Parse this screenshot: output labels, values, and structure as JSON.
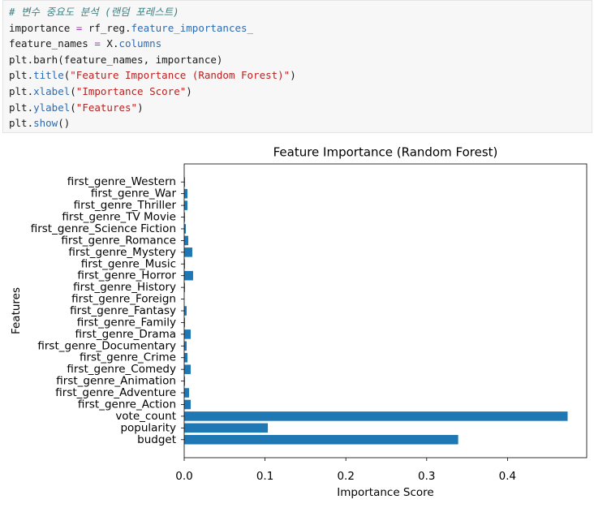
{
  "code": {
    "lines": [
      [
        {
          "text": "# 변수 중요도 분석 (랜덤 포레스트)",
          "color": "#3d7f7f"
        }
      ],
      [
        {
          "text": "importance ",
          "color": "#1a1a1a"
        },
        {
          "text": "=",
          "color": "#9a3fb5"
        },
        {
          "text": " rf_reg.",
          "color": "#1a1a1a"
        },
        {
          "text": "feature_importances_",
          "color": "#2f6bb0"
        }
      ],
      [
        {
          "text": "feature_names ",
          "color": "#1a1a1a"
        },
        {
          "text": "=",
          "color": "#9a3fb5"
        },
        {
          "text": " X.",
          "color": "#1a1a1a"
        },
        {
          "text": "columns",
          "color": "#2f6bb0"
        }
      ],
      [
        {
          "text": "plt.barh(feature_names, importance)",
          "color": "#1a1a1a"
        }
      ],
      [
        {
          "text": "plt.",
          "color": "#1a1a1a"
        },
        {
          "text": "title",
          "color": "#2f6bb0"
        },
        {
          "text": "(",
          "color": "#1a1a1a"
        },
        {
          "text": "\"Feature Importance (Random Forest)\"",
          "color": "#ba2121"
        },
        {
          "text": ")",
          "color": "#1a1a1a"
        }
      ],
      [
        {
          "text": "plt.",
          "color": "#1a1a1a"
        },
        {
          "text": "xlabel",
          "color": "#2f6bb0"
        },
        {
          "text": "(",
          "color": "#1a1a1a"
        },
        {
          "text": "\"Importance Score\"",
          "color": "#ba2121"
        },
        {
          "text": ")",
          "color": "#1a1a1a"
        }
      ],
      [
        {
          "text": "plt.",
          "color": "#1a1a1a"
        },
        {
          "text": "ylabel",
          "color": "#2f6bb0"
        },
        {
          "text": "(",
          "color": "#1a1a1a"
        },
        {
          "text": "\"Features\"",
          "color": "#ba2121"
        },
        {
          "text": ")",
          "color": "#1a1a1a"
        }
      ],
      [
        {
          "text": "plt.",
          "color": "#1a1a1a"
        },
        {
          "text": "show",
          "color": "#2f6bb0"
        },
        {
          "text": "()",
          "color": "#1a1a1a"
        }
      ]
    ]
  },
  "chart_data": {
    "type": "barh",
    "title": "Feature Importance (Random Forest)",
    "x_label": "Importance Score",
    "y_label": "Features",
    "categories": [
      "budget",
      "popularity",
      "vote_count",
      "first_genre_Action",
      "first_genre_Adventure",
      "first_genre_Animation",
      "first_genre_Comedy",
      "first_genre_Crime",
      "first_genre_Documentary",
      "first_genre_Drama",
      "first_genre_Family",
      "first_genre_Fantasy",
      "first_genre_Foreign",
      "first_genre_History",
      "first_genre_Horror",
      "first_genre_Music",
      "first_genre_Mystery",
      "first_genre_Romance",
      "first_genre_Science Fiction",
      "first_genre_TV Movie",
      "first_genre_Thriller",
      "first_genre_War",
      "first_genre_Western"
    ],
    "values": [
      0.339,
      0.1035,
      0.4744,
      0.008,
      0.006,
      0.001,
      0.008,
      0.004,
      0.003,
      0.008,
      0.001,
      0.003,
      0.0,
      0.001,
      0.011,
      0.001,
      0.01,
      0.005,
      0.002,
      0.001,
      0.004,
      0.004,
      0.001
    ],
    "color": "#1f77b4",
    "xlim": [
      0,
      0.498
    ],
    "xticks": [
      {
        "value": 0,
        "label": "0.0"
      },
      0.1,
      0.2,
      0.3,
      0.4
    ]
  }
}
